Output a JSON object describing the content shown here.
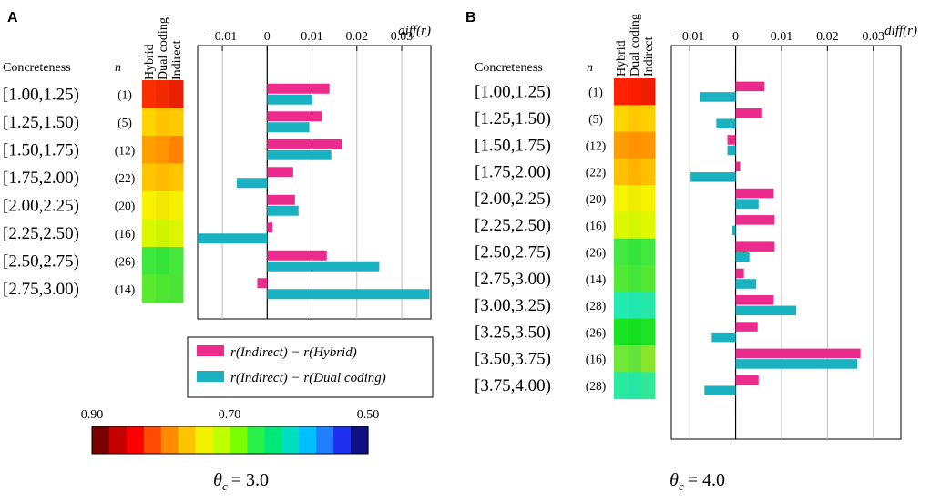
{
  "figure": {
    "heatmap_columns": [
      "Hybrid",
      "Dual coding",
      "Indirect"
    ],
    "concreteness_label": "Concreteness",
    "n_label": "n",
    "axis_label": "diff(r)",
    "axis_tick_labels": [
      "−0.01",
      "0",
      "0.01",
      "0.02",
      "0.03"
    ],
    "legend": [
      {
        "label": "r(Indirect) − r(Hybrid)",
        "color": "#ec2c8c"
      },
      {
        "label": "r(Indirect) − r(Dual coding)",
        "color": "#1ab1c0"
      }
    ],
    "colorbar": {
      "tick_labels": [
        "0.90",
        "0.70",
        "0.50"
      ],
      "range": [
        0.9,
        0.5
      ],
      "colors": [
        "#7a0000",
        "#c40000",
        "#ff0000",
        "#ff4a00",
        "#ff8c00",
        "#ffc400",
        "#f2f200",
        "#c0ff00",
        "#7aff00",
        "#2cf04a",
        "#00e87a",
        "#00e0c0",
        "#00c0ff",
        "#1f7fff",
        "#1f2ff0",
        "#101080"
      ]
    }
  },
  "chart_data": [
    {
      "panel": "A",
      "type": "bar",
      "orientation": "horizontal",
      "theta_label": "θc = 3.0",
      "theta_symbol": "θ",
      "theta_sub": "c",
      "theta_value": "= 3.0",
      "xlabel": "diff(r)",
      "xlim": [
        -0.0155,
        0.0365
      ],
      "categories": [
        "[1.00,1.25)",
        "[1.25,1.50)",
        "[1.50,1.75)",
        "[1.75,2.00)",
        "[2.00,2.25)",
        "[2.25,2.50)",
        "[2.50,2.75)",
        "[2.75,3.00)"
      ],
      "n_labels": [
        "(1)",
        "(5)",
        "(12)",
        "(22)",
        "(20)",
        "(16)",
        "(26)",
        "(14)"
      ],
      "heatmap": [
        [
          "#fb2e00",
          "#f12a00",
          "#e81f00"
        ],
        [
          "#ffd400",
          "#ffc200",
          "#ffc800"
        ],
        [
          "#ff9e00",
          "#ff9400",
          "#ff8200"
        ],
        [
          "#ffc600",
          "#ffbc00",
          "#ffc600"
        ],
        [
          "#f7f200",
          "#f0e800",
          "#f7f000"
        ],
        [
          "#d8f800",
          "#d0f400",
          "#dcf600"
        ],
        [
          "#3fe83f",
          "#34e438",
          "#46e83c"
        ],
        [
          "#5aea30",
          "#4ee432",
          "#4ce236"
        ]
      ],
      "series": [
        {
          "name": "r(Indirect) − r(Hybrid)",
          "values": [
            0.0139,
            0.0122,
            0.0167,
            0.0058,
            0.0062,
            0.0012,
            0.0133,
            -0.0022
          ]
        },
        {
          "name": "r(Indirect) − r(Dual coding)",
          "values": [
            0.0101,
            0.0094,
            0.0143,
            -0.0068,
            0.007,
            -0.0153,
            0.025,
            0.0362
          ]
        }
      ]
    },
    {
      "panel": "B",
      "type": "bar",
      "orientation": "horizontal",
      "theta_label": "θc = 4.0",
      "theta_symbol": "θ",
      "theta_sub": "c",
      "theta_value": "= 4.0",
      "xlabel": "diff(r)",
      "xlim": [
        -0.014,
        0.036
      ],
      "categories": [
        "[1.00,1.25)",
        "[1.25,1.50)",
        "[1.50,1.75)",
        "[1.75,2.00)",
        "[2.00,2.25)",
        "[2.25,2.50)",
        "[2.50,2.75)",
        "[2.75,3.00)",
        "[3.00,3.25)",
        "[3.25,3.50)",
        "[3.50,3.75)",
        "[3.75,4.00)"
      ],
      "n_labels": [
        "(1)",
        "(5)",
        "(12)",
        "(22)",
        "(20)",
        "(16)",
        "(26)",
        "(14)",
        "(28)",
        "(26)",
        "(16)",
        "(28)"
      ],
      "heatmap": [
        [
          "#ff2200",
          "#f91e00",
          "#ef1c00"
        ],
        [
          "#ffd600",
          "#ffc800",
          "#ffd000"
        ],
        [
          "#ff9c00",
          "#ff9200",
          "#ff9600"
        ],
        [
          "#ffc000",
          "#ffb400",
          "#ffbe00"
        ],
        [
          "#f6f400",
          "#f0ec00",
          "#f6f200"
        ],
        [
          "#dcf800",
          "#d4f600",
          "#e0f800"
        ],
        [
          "#40e840",
          "#36e43c",
          "#42e840"
        ],
        [
          "#50ea34",
          "#46e638",
          "#52e834"
        ],
        [
          "#22eab0",
          "#20e6b0",
          "#26e8a6"
        ],
        [
          "#18e420",
          "#14e020",
          "#1ce424"
        ],
        [
          "#70e838",
          "#64e43a",
          "#8ae62c"
        ],
        [
          "#28eaa0",
          "#26e6a4",
          "#30e898"
        ]
      ],
      "series": [
        {
          "name": "r(Indirect) − r(Hybrid)",
          "values": [
            0.0063,
            0.0058,
            -0.0018,
            0.001,
            0.0083,
            0.0085,
            0.0085,
            0.0018,
            0.0083,
            0.0048,
            0.0272,
            0.005
          ]
        },
        {
          "name": "r(Indirect) − r(Dual coding)",
          "values": [
            -0.0078,
            -0.0042,
            -0.0018,
            -0.0098,
            0.005,
            -0.0007,
            0.003,
            0.0045,
            0.0132,
            -0.0052,
            0.0265,
            -0.0068
          ]
        }
      ]
    }
  ]
}
